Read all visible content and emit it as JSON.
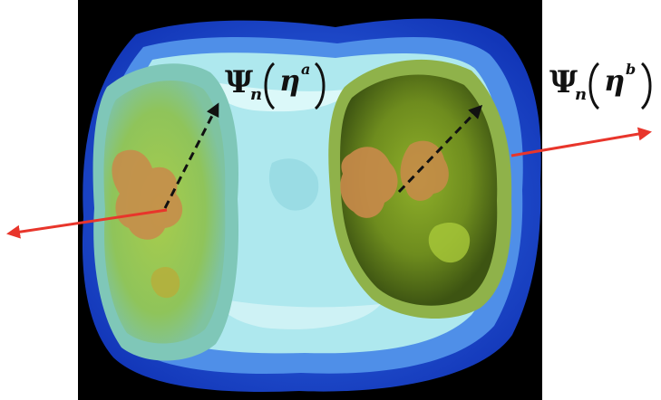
{
  "labels": {
    "left": {
      "psi": "Ψ",
      "sub": "n",
      "eta": "η",
      "sup": "a"
    },
    "right": {
      "psi": "Ψ",
      "sub": "n",
      "eta": "η",
      "sup": "b"
    }
  },
  "colors": {
    "background": "#000000",
    "outer_shell": "#1f54e0",
    "middle_shell": "#4f8fe8",
    "inner_shell": "#aee8ee",
    "left_face_outer": "#8fd3a8",
    "left_face_inner": "#9cc94f",
    "core": "#c98a4a",
    "right_face": "#5d7a1a",
    "right_face_inner": "#7da21f",
    "arrow_red": "#e8352b",
    "arrow_dashed": "#111111"
  },
  "icons": [
    "red-arrow-left",
    "red-arrow-right",
    "dashed-arrow-left",
    "dashed-arrow-right"
  ]
}
